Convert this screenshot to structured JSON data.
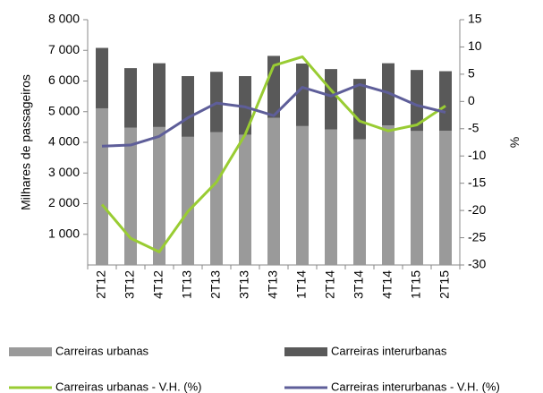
{
  "chart_data": {
    "type": "bar_line",
    "y_label": "Milhares de passageiros",
    "y2_label": "%",
    "categories": [
      "2T12",
      "3T12",
      "4T12",
      "1T13",
      "2T13",
      "3T13",
      "4T13",
      "1T14",
      "2T14",
      "3T14",
      "4T14",
      "1T15",
      "2T15"
    ],
    "ylim": [
      0,
      8000
    ],
    "yticks": [
      {
        "value": 1000,
        "label": "1 000"
      },
      {
        "value": 2000,
        "label": "2 000"
      },
      {
        "value": 3000,
        "label": "3 000"
      },
      {
        "value": 4000,
        "label": "4 000"
      },
      {
        "value": 5000,
        "label": "5 000"
      },
      {
        "value": 6000,
        "label": "6 000"
      },
      {
        "value": 7000,
        "label": "7 000"
      },
      {
        "value": 8000,
        "label": "8 000"
      }
    ],
    "y2lim": [
      -30,
      15
    ],
    "y2ticks": [
      -30,
      -25,
      -20,
      -15,
      -10,
      -5,
      0,
      5,
      10,
      15
    ],
    "series": [
      {
        "name": "Carreiras urbanas",
        "type": "bar",
        "color": "#9a9a9a",
        "values": [
          5110,
          4480,
          4500,
          4180,
          4330,
          4250,
          4800,
          4530,
          4420,
          4100,
          4550,
          4370,
          4380
        ]
      },
      {
        "name": "Carreiras interurbanas",
        "type": "bar",
        "color": "#595959",
        "values": [
          1970,
          1940,
          2080,
          1980,
          1970,
          1910,
          2020,
          2040,
          1970,
          1970,
          2030,
          1990,
          1940
        ]
      },
      {
        "name": "Carreiras urbanas - V.H. (%)",
        "type": "line",
        "axis": "y2",
        "color": "#99cc33",
        "values": [
          -18.9,
          -25.1,
          -27.6,
          -20.2,
          -14.8,
          -6.1,
          6.6,
          8.2,
          2.1,
          -3.6,
          -5.4,
          -4.3,
          -0.8
        ]
      },
      {
        "name": "Carreiras interurbanas - V.H. (%)",
        "type": "line",
        "axis": "y2",
        "color": "#5e5e99",
        "values": [
          -8.2,
          -8.0,
          -6.4,
          -3.0,
          -0.3,
          -1.0,
          -2.6,
          2.6,
          1.0,
          3.1,
          1.6,
          -0.7,
          -2.0
        ]
      }
    ]
  }
}
